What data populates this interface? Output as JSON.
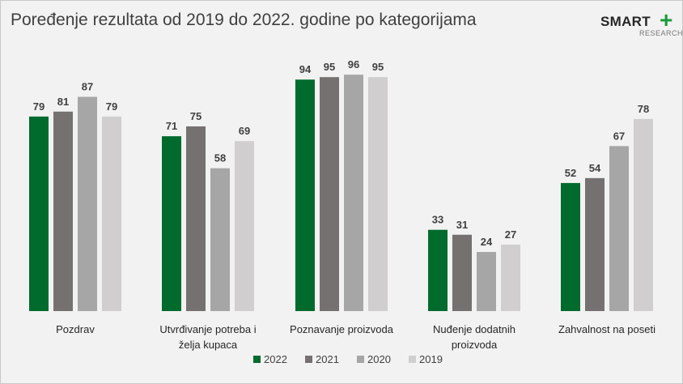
{
  "title": "Poređenje rezultata od 2019 do 2022. godine po kategorijama",
  "logo": {
    "word": "SMART",
    "plus": "+",
    "sub": "RESEARCH"
  },
  "chart_data": {
    "type": "bar",
    "title": "Poređenje rezultata od 2019 do 2022. godine po kategorijama",
    "categories": [
      [
        "Pozdrav"
      ],
      [
        "Utvrđivanje potreba i",
        "želja kupaca"
      ],
      [
        "Poznavanje proizvoda"
      ],
      [
        "Nuđenje dodatnih",
        "proizvoda"
      ],
      [
        "Zahvalnost na poseti"
      ]
    ],
    "series": [
      {
        "name": "2022",
        "color": "#006b2d",
        "values": [
          79,
          71,
          94,
          33,
          52
        ]
      },
      {
        "name": "2021",
        "color": "#767171",
        "values": [
          81,
          75,
          95,
          31,
          54
        ]
      },
      {
        "name": "2020",
        "color": "#a6a6a6",
        "values": [
          87,
          58,
          96,
          24,
          67
        ]
      },
      {
        "name": "2019",
        "color": "#d0cece",
        "values": [
          79,
          69,
          95,
          27,
          78
        ]
      }
    ],
    "ylim": [
      0,
      100
    ],
    "grid": false,
    "legend_position": "bottom"
  }
}
